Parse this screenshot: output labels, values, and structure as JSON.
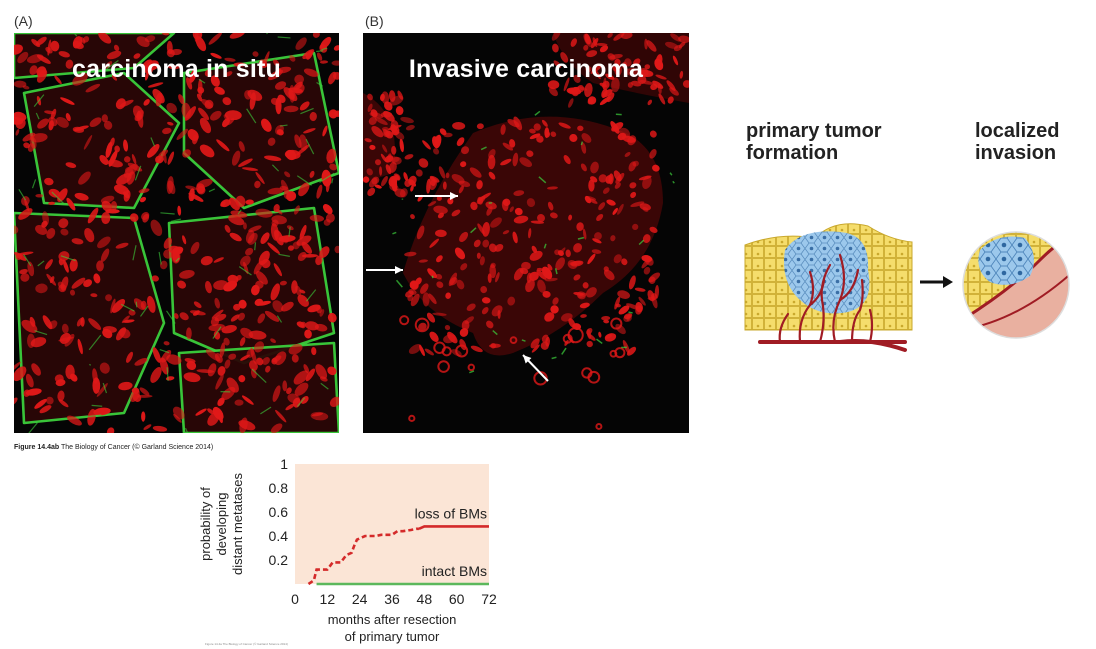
{
  "panel_a": {
    "letter": "(A)",
    "title": "carcinoma in situ"
  },
  "panel_b": {
    "letter": "(B)",
    "title": "Invasive carcinoma"
  },
  "figure_caption": {
    "figure": "Figure 14.4ab",
    "text": " The Biology of Cancer (© Garland Science 2014)"
  },
  "schematic": {
    "left_label": "primary tumor\nformation",
    "right_label": "localized\ninvasion"
  },
  "colors": {
    "stain_red": "#e01818",
    "stain_green": "#3ccf3c",
    "chart_bg": "#fbe5d6",
    "loss_line": "#d42a2a",
    "intact_line": "#5cb85c",
    "epithelium": "#f5dd6c",
    "tumor": "#9cc8ec",
    "vessel": "#a01c24"
  },
  "chart_data": {
    "type": "line",
    "x_ticks": [
      0,
      12,
      24,
      36,
      48,
      60,
      72
    ],
    "y_ticks": [
      0.2,
      0.4,
      0.6,
      0.8,
      1
    ],
    "xlim": [
      0,
      72
    ],
    "ylim": [
      0,
      1
    ],
    "xlabel": "months after resection\nof primary tumor",
    "ylabel": "probability of\ndeveloping\ndistant metatases",
    "series": [
      {
        "name": "loss of BMs",
        "style": "dashed-then-solid",
        "x": [
          5,
          7,
          8,
          12,
          14,
          17,
          19,
          21,
          22,
          23,
          26,
          30,
          32,
          36,
          38,
          40,
          43,
          45,
          46,
          48,
          72
        ],
        "y": [
          0,
          0.03,
          0.12,
          0.12,
          0.18,
          0.18,
          0.24,
          0.26,
          0.32,
          0.37,
          0.4,
          0.4,
          0.41,
          0.41,
          0.44,
          0.44,
          0.45,
          0.46,
          0.46,
          0.48,
          0.48
        ],
        "solid_from_x": 46
      },
      {
        "name": "intact BMs",
        "style": "solid",
        "x": [
          8,
          72
        ],
        "y": [
          0,
          0
        ]
      }
    ],
    "legend": "inline labels above each line"
  },
  "footer_credit": "Figure 14.4a  The Biology of Cancer (© Garland Science 2014)"
}
